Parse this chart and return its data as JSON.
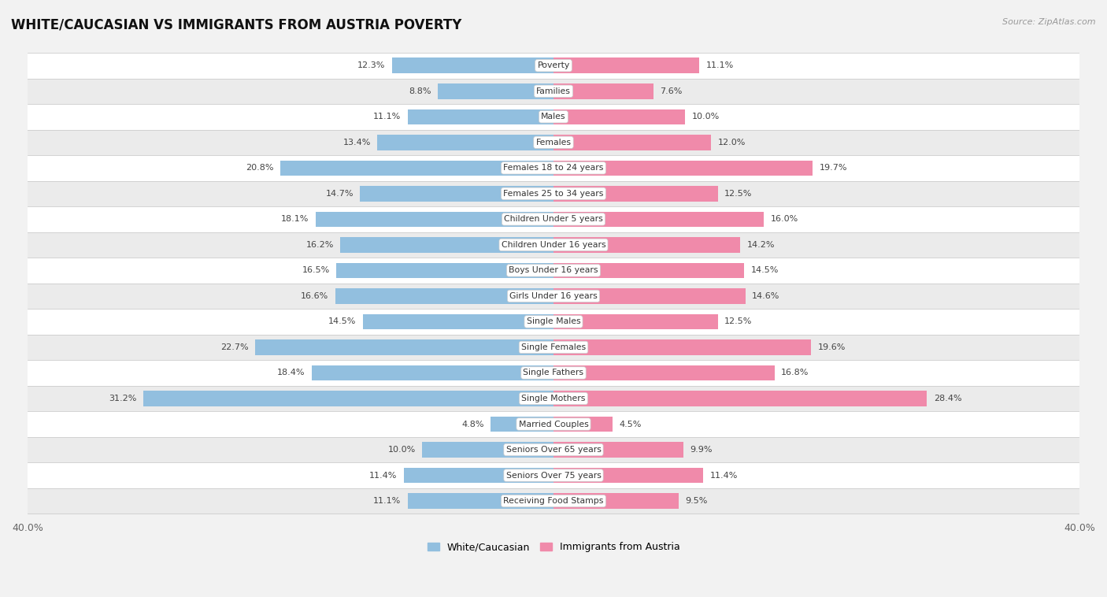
{
  "title": "WHITE/CAUCASIAN VS IMMIGRANTS FROM AUSTRIA POVERTY",
  "source": "Source: ZipAtlas.com",
  "categories": [
    "Poverty",
    "Families",
    "Males",
    "Females",
    "Females 18 to 24 years",
    "Females 25 to 34 years",
    "Children Under 5 years",
    "Children Under 16 years",
    "Boys Under 16 years",
    "Girls Under 16 years",
    "Single Males",
    "Single Females",
    "Single Fathers",
    "Single Mothers",
    "Married Couples",
    "Seniors Over 65 years",
    "Seniors Over 75 years",
    "Receiving Food Stamps"
  ],
  "white_values": [
    12.3,
    8.8,
    11.1,
    13.4,
    20.8,
    14.7,
    18.1,
    16.2,
    16.5,
    16.6,
    14.5,
    22.7,
    18.4,
    31.2,
    4.8,
    10.0,
    11.4,
    11.1
  ],
  "immigrant_values": [
    11.1,
    7.6,
    10.0,
    12.0,
    19.7,
    12.5,
    16.0,
    14.2,
    14.5,
    14.6,
    12.5,
    19.6,
    16.8,
    28.4,
    4.5,
    9.9,
    11.4,
    9.5
  ],
  "white_color": "#92bfdf",
  "immigrant_color": "#f08aaa",
  "background_color": "#f2f2f2",
  "row_bg_light": "#ffffff",
  "row_bg_dark": "#ebebeb",
  "xlim": 40.0,
  "legend_white": "White/Caucasian",
  "legend_immigrant": "Immigrants from Austria",
  "bar_height": 0.6
}
